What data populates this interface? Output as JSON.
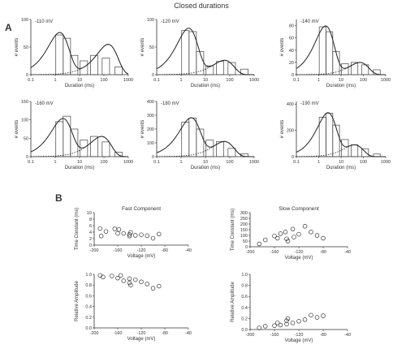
{
  "figure": {
    "title": "Closed durations",
    "panel_a_label": "A",
    "panel_b_label": "B"
  },
  "chart_data": [
    {
      "type": "bar",
      "xscale": "log",
      "panel": "A",
      "voltage_label": "-110 mV",
      "xlabel": "Duration (ms)",
      "ylabel": "# events",
      "xlim": [
        0.1,
        1000
      ],
      "ylim": [
        0,
        100
      ],
      "xticks": [
        "0.1",
        "1",
        "10",
        "100",
        "1000"
      ],
      "yticks": [
        "0",
        "50",
        "100"
      ],
      "histogram": [
        {
          "x": 1.5,
          "y": 72
        },
        {
          "x": 3,
          "y": 66
        },
        {
          "x": 6,
          "y": 35
        },
        {
          "x": 15,
          "y": 25
        },
        {
          "x": 40,
          "y": 35
        },
        {
          "x": 120,
          "y": 30
        },
        {
          "x": 400,
          "y": 14
        }
      ],
      "fits": [
        {
          "line": "solid",
          "components": [
            {
              "tau": 1.5,
              "amp": 75
            },
            {
              "tau": 150,
              "amp": 55
            }
          ]
        },
        {
          "line": "dotted",
          "components": [
            {
              "tau": 150,
              "amp": 55
            }
          ]
        }
      ]
    },
    {
      "type": "bar",
      "xscale": "log",
      "panel": "A",
      "voltage_label": "-120 mV",
      "xlabel": "Duration (ms)",
      "ylabel": "# events",
      "xlim": [
        0.1,
        1000
      ],
      "ylim": [
        0,
        100
      ],
      "xticks": [
        "0.1",
        "1",
        "10",
        "100",
        "1000"
      ],
      "yticks": [
        "0",
        "50",
        "100"
      ],
      "histogram": [
        {
          "x": 1.5,
          "y": 80
        },
        {
          "x": 3,
          "y": 78
        },
        {
          "x": 6,
          "y": 42
        },
        {
          "x": 15,
          "y": 16
        },
        {
          "x": 40,
          "y": 24
        },
        {
          "x": 120,
          "y": 22
        },
        {
          "x": 400,
          "y": 10
        }
      ],
      "fits": [
        {
          "line": "solid",
          "components": [
            {
              "tau": 2,
              "amp": 82
            },
            {
              "tau": 60,
              "amp": 26
            }
          ]
        },
        {
          "line": "dotted",
          "components": [
            {
              "tau": 60,
              "amp": 26
            }
          ]
        }
      ]
    },
    {
      "type": "bar",
      "xscale": "log",
      "panel": "A",
      "voltage_label": "-140 mV",
      "xlabel": "Duration (ms)",
      "ylabel": "# events",
      "xlim": [
        0.1,
        1000
      ],
      "ylim": [
        0,
        90
      ],
      "xticks": [
        "0.1",
        "1",
        "10",
        "100",
        "1000"
      ],
      "yticks": [
        "0",
        "20",
        "40",
        "60",
        "80"
      ],
      "histogram": [
        {
          "x": 1.5,
          "y": 78
        },
        {
          "x": 3,
          "y": 70
        },
        {
          "x": 6,
          "y": 38
        },
        {
          "x": 15,
          "y": 18
        },
        {
          "x": 40,
          "y": 20
        },
        {
          "x": 120,
          "y": 16
        },
        {
          "x": 400,
          "y": 8
        }
      ],
      "fits": [
        {
          "line": "solid",
          "components": [
            {
              "tau": 2,
              "amp": 78
            },
            {
              "tau": 70,
              "amp": 20
            }
          ]
        },
        {
          "line": "dotted",
          "components": [
            {
              "tau": 70,
              "amp": 20
            }
          ]
        }
      ]
    },
    {
      "type": "bar",
      "xscale": "log",
      "panel": "A",
      "voltage_label": "-160 mV",
      "xlabel": "Duration (ms)",
      "ylabel": "# events",
      "xlim": [
        0.1,
        1000
      ],
      "ylim": [
        0,
        150
      ],
      "xticks": [
        "0.1",
        "1",
        "10",
        "100",
        "1000"
      ],
      "yticks": [
        "0",
        "50",
        "100",
        "150"
      ],
      "histogram": [
        {
          "x": 1.5,
          "y": 95
        },
        {
          "x": 3,
          "y": 110
        },
        {
          "x": 6,
          "y": 75
        },
        {
          "x": 15,
          "y": 45
        },
        {
          "x": 40,
          "y": 55
        },
        {
          "x": 120,
          "y": 40
        },
        {
          "x": 400,
          "y": 12
        }
      ],
      "fits": [
        {
          "line": "solid",
          "components": [
            {
              "tau": 2,
              "amp": 100
            },
            {
              "tau": 80,
              "amp": 55
            }
          ]
        },
        {
          "line": "dotted",
          "components": [
            {
              "tau": 80,
              "amp": 55
            }
          ]
        }
      ]
    },
    {
      "type": "bar",
      "xscale": "log",
      "panel": "A",
      "voltage_label": "-180 mV",
      "xlabel": "Duration (ms)",
      "ylabel": "# events",
      "xlim": [
        0.1,
        1000
      ],
      "ylim": [
        0,
        400
      ],
      "xticks": [
        "0.1",
        "1",
        "10",
        "100",
        "1000"
      ],
      "yticks": [
        "0",
        "100",
        "200",
        "300",
        "400"
      ],
      "histogram": [
        {
          "x": 1.5,
          "y": 250
        },
        {
          "x": 3,
          "y": 280
        },
        {
          "x": 6,
          "y": 200
        },
        {
          "x": 15,
          "y": 120
        },
        {
          "x": 40,
          "y": 110
        },
        {
          "x": 120,
          "y": 60
        },
        {
          "x": 400,
          "y": 20
        }
      ],
      "fits": [
        {
          "line": "solid",
          "components": [
            {
              "tau": 2.5,
              "amp": 270
            },
            {
              "tau": 60,
              "amp": 110
            }
          ]
        },
        {
          "line": "dotted",
          "components": [
            {
              "tau": 60,
              "amp": 110
            }
          ]
        }
      ]
    },
    {
      "type": "bar",
      "xscale": "log",
      "panel": "A",
      "voltage_label": "-190 mV",
      "xlabel": "Duration (ms)",
      "ylabel": "# events",
      "xlim": [
        0.1,
        1000
      ],
      "ylim": [
        0,
        420
      ],
      "xticks": [
        "0.1",
        "1",
        "10",
        "100",
        "1000"
      ],
      "yticks": [
        "0",
        "200",
        "400"
      ],
      "histogram": [
        {
          "x": 1.5,
          "y": 300
        },
        {
          "x": 3,
          "y": 330
        },
        {
          "x": 6,
          "y": 240
        },
        {
          "x": 15,
          "y": 130
        },
        {
          "x": 40,
          "y": 90
        },
        {
          "x": 120,
          "y": 60
        },
        {
          "x": 400,
          "y": 20
        }
      ],
      "fits": [
        {
          "line": "solid",
          "components": [
            {
              "tau": 2.5,
              "amp": 320
            },
            {
              "tau": 40,
              "amp": 90
            }
          ]
        },
        {
          "line": "dotted",
          "components": [
            {
              "tau": 40,
              "amp": 90
            }
          ]
        }
      ]
    },
    {
      "type": "scatter",
      "panel": "B",
      "title": "Fast Component",
      "xlabel": "Voltage (mV)",
      "ylabel": "Time Constant (ms)",
      "xlim": [
        -200,
        -40
      ],
      "ylim": [
        0,
        10
      ],
      "xticks": [
        "-200",
        "-160",
        "-120",
        "-80",
        "-40"
      ],
      "yticks": [
        "0",
        "2",
        "4",
        "6",
        "8",
        "10"
      ],
      "points": [
        {
          "x": -190,
          "y": 5.1
        },
        {
          "x": -188,
          "y": 2.8
        },
        {
          "x": -180,
          "y": 4.2
        },
        {
          "x": -165,
          "y": 5.0
        },
        {
          "x": -160,
          "y": 3.6
        },
        {
          "x": -158,
          "y": 4.8
        },
        {
          "x": -150,
          "y": 3.6
        },
        {
          "x": -140,
          "y": 3.3
        },
        {
          "x": -140,
          "y": 2.8
        },
        {
          "x": -138,
          "y": 3.9
        },
        {
          "x": -130,
          "y": 3.0
        },
        {
          "x": -120,
          "y": 3.2
        },
        {
          "x": -110,
          "y": 2.9
        },
        {
          "x": -100,
          "y": 2.1
        },
        {
          "x": -90,
          "y": 3.4
        }
      ]
    },
    {
      "type": "scatter",
      "panel": "B",
      "title": "Slow Component",
      "xlabel": "Voltage (mV)",
      "ylabel": "Time Constant (ms)",
      "xlim": [
        -200,
        -40
      ],
      "ylim": [
        0,
        300
      ],
      "xticks": [
        "-200",
        "-160",
        "-120",
        "-80",
        "-40"
      ],
      "yticks": [
        "0",
        "50",
        "100",
        "150",
        "200",
        "250",
        "300"
      ],
      "points": [
        {
          "x": -185,
          "y": 25
        },
        {
          "x": -175,
          "y": 60
        },
        {
          "x": -160,
          "y": 95
        },
        {
          "x": -155,
          "y": 75
        },
        {
          "x": -150,
          "y": 115
        },
        {
          "x": -142,
          "y": 130
        },
        {
          "x": -140,
          "y": 70
        },
        {
          "x": -138,
          "y": 50
        },
        {
          "x": -130,
          "y": 155
        },
        {
          "x": -128,
          "y": 85
        },
        {
          "x": -120,
          "y": 110
        },
        {
          "x": -110,
          "y": 180
        },
        {
          "x": -100,
          "y": 130
        },
        {
          "x": -90,
          "y": 100
        },
        {
          "x": -80,
          "y": 75
        }
      ]
    },
    {
      "type": "scatter",
      "panel": "B",
      "title": "",
      "xlabel": "Voltage (mV)",
      "ylabel": "Relative Amplitude",
      "xlim": [
        -200,
        -40
      ],
      "ylim": [
        0,
        1.0
      ],
      "xticks": [
        "-200",
        "-160",
        "-120",
        "-80",
        "-40"
      ],
      "yticks": [
        "0.0",
        "0.2",
        "0.4",
        "0.6",
        "0.8",
        "1.0"
      ],
      "points": [
        {
          "x": -190,
          "y": 0.98
        },
        {
          "x": -185,
          "y": 0.95
        },
        {
          "x": -170,
          "y": 0.97
        },
        {
          "x": -160,
          "y": 0.93
        },
        {
          "x": -155,
          "y": 0.98
        },
        {
          "x": -150,
          "y": 0.88
        },
        {
          "x": -140,
          "y": 0.92
        },
        {
          "x": -140,
          "y": 0.84
        },
        {
          "x": -138,
          "y": 0.8
        },
        {
          "x": -130,
          "y": 0.9
        },
        {
          "x": -120,
          "y": 0.86
        },
        {
          "x": -110,
          "y": 0.82
        },
        {
          "x": -100,
          "y": 0.74
        },
        {
          "x": -90,
          "y": 0.78
        }
      ]
    },
    {
      "type": "scatter",
      "panel": "B",
      "title": "",
      "xlabel": "Voltage (mV)",
      "ylabel": "Relative Amplitude",
      "xlim": [
        -200,
        -40
      ],
      "ylim": [
        0,
        1.0
      ],
      "xticks": [
        "-200",
        "-160",
        "-120",
        "-80",
        "-40"
      ],
      "yticks": [
        "0.0",
        "0.2",
        "0.4",
        "0.6",
        "0.8",
        "1.0"
      ],
      "points": [
        {
          "x": -185,
          "y": 0.03
        },
        {
          "x": -175,
          "y": 0.06
        },
        {
          "x": -160,
          "y": 0.07
        },
        {
          "x": -155,
          "y": 0.12
        },
        {
          "x": -150,
          "y": 0.08
        },
        {
          "x": -140,
          "y": 0.1
        },
        {
          "x": -140,
          "y": 0.16
        },
        {
          "x": -138,
          "y": 0.2
        },
        {
          "x": -130,
          "y": 0.12
        },
        {
          "x": -120,
          "y": 0.15
        },
        {
          "x": -110,
          "y": 0.18
        },
        {
          "x": -100,
          "y": 0.26
        },
        {
          "x": -90,
          "y": 0.22
        },
        {
          "x": -80,
          "y": 0.25
        }
      ]
    }
  ]
}
